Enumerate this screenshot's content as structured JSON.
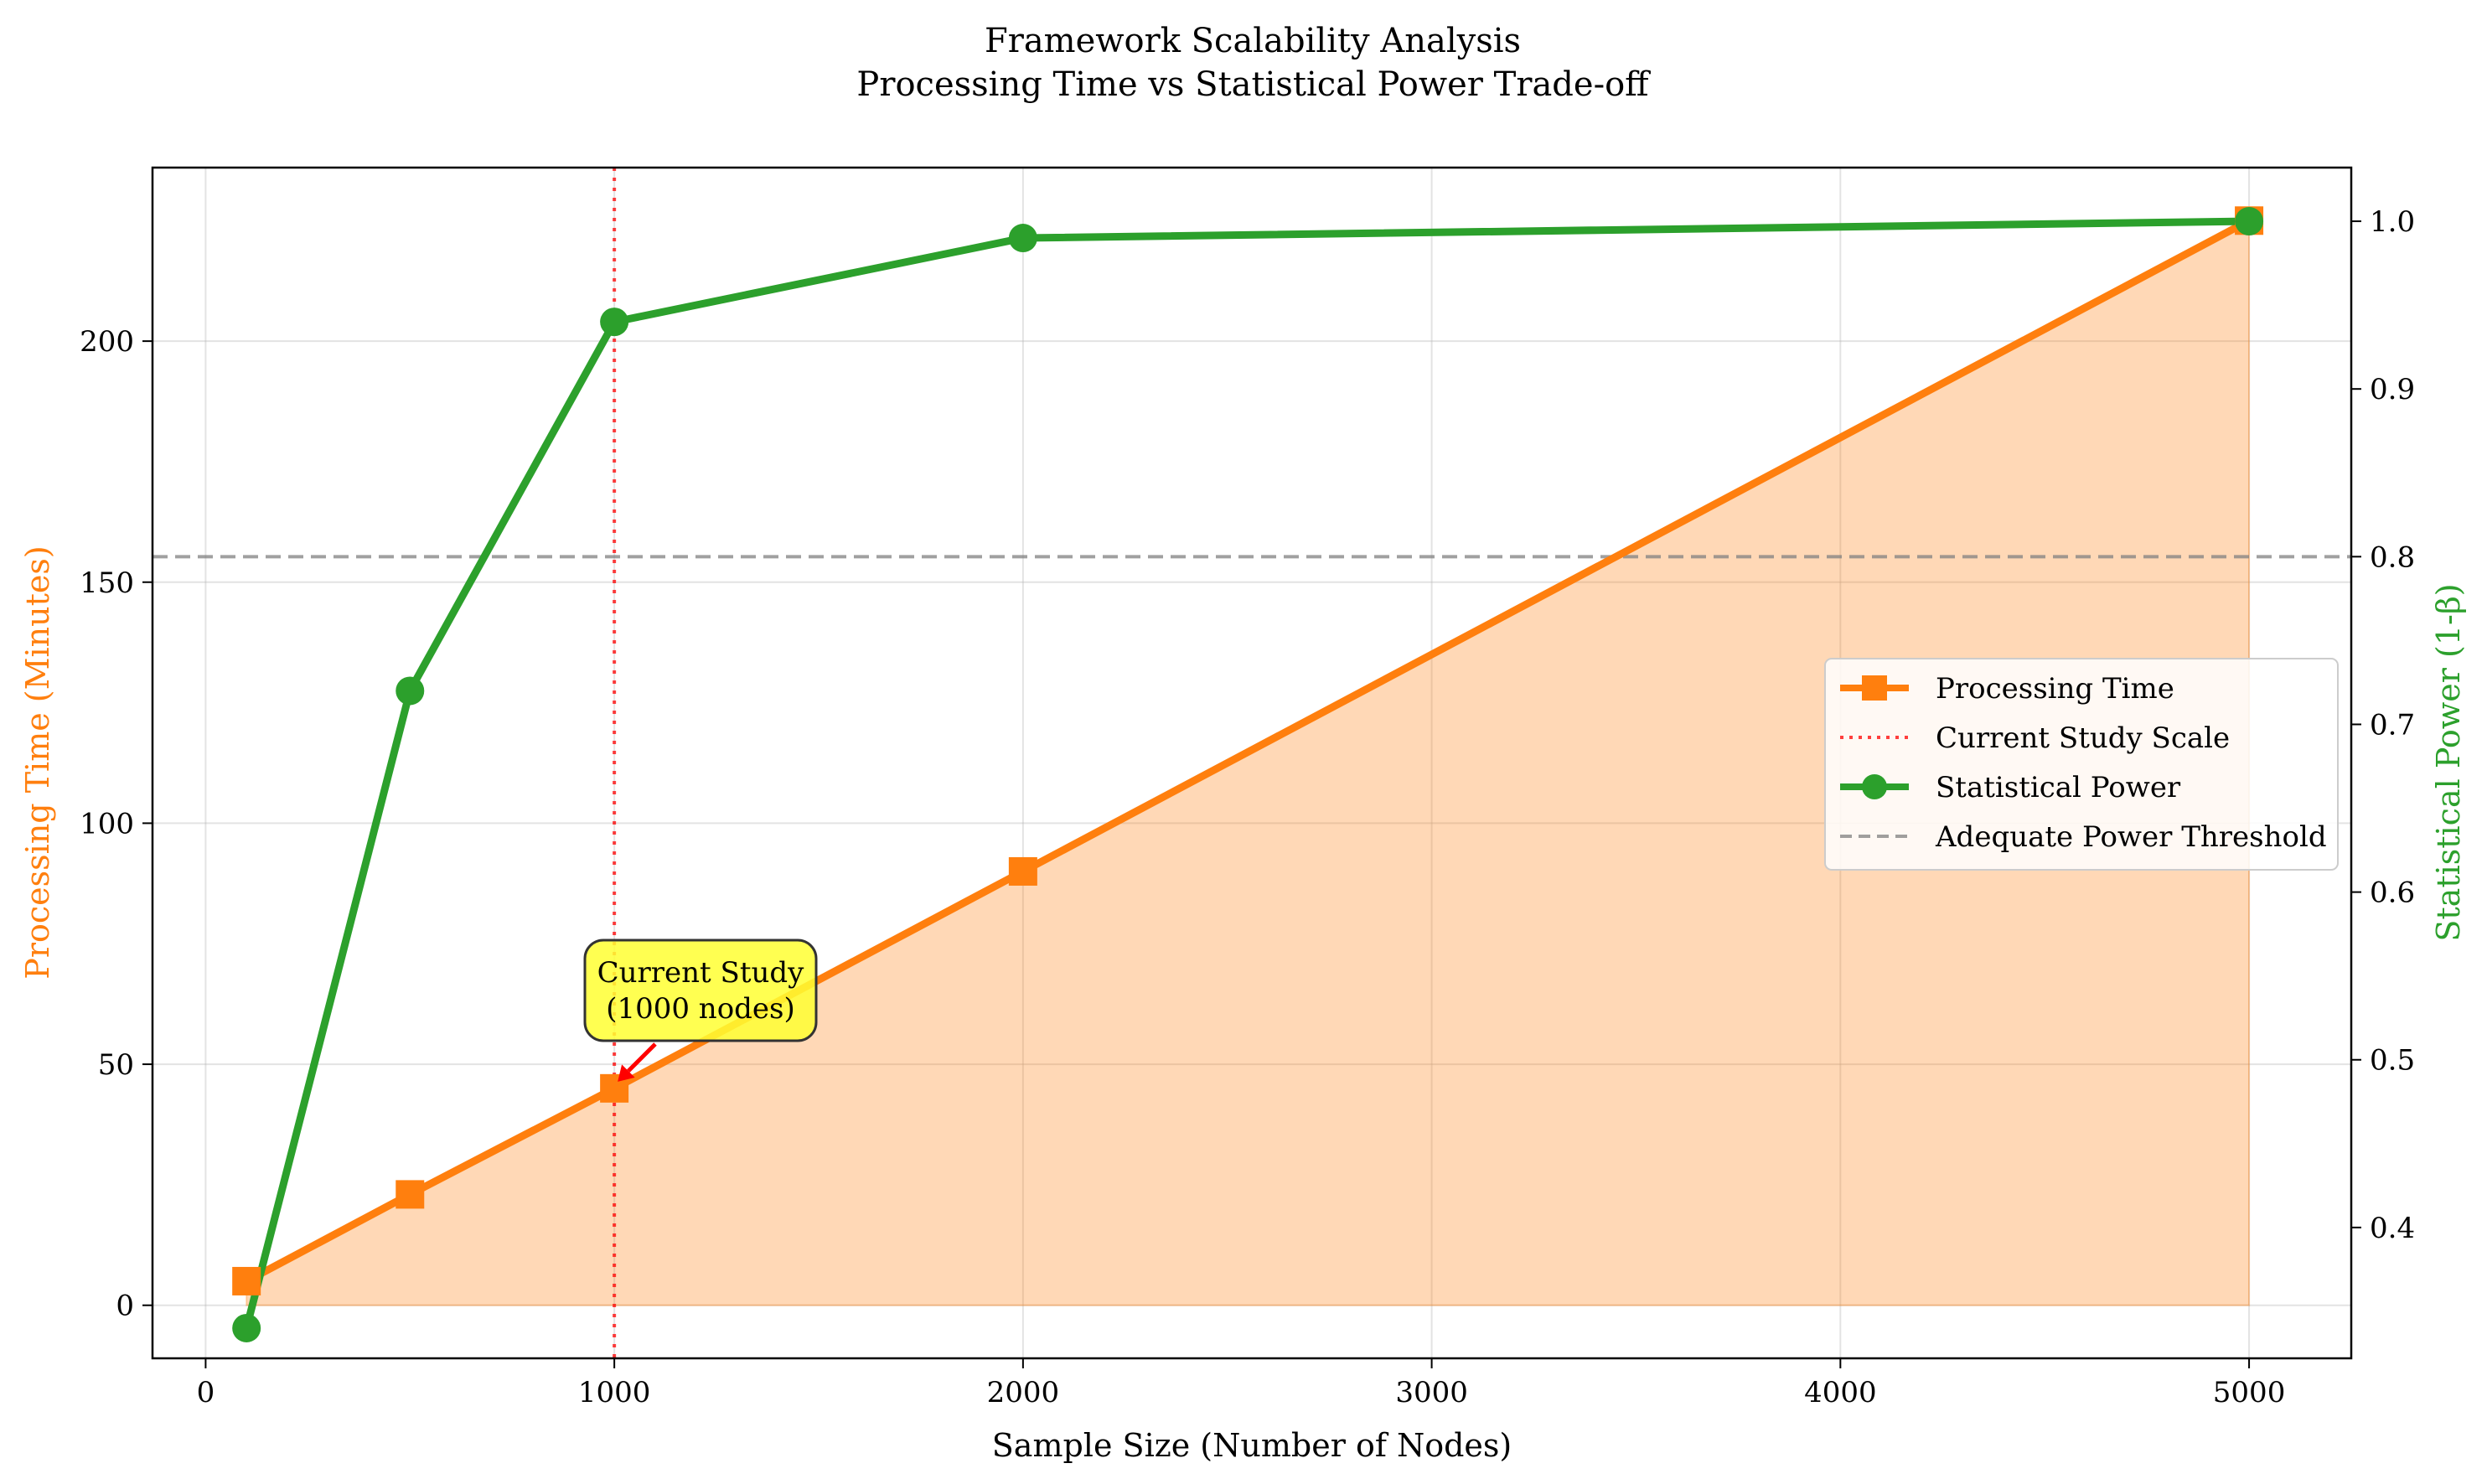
{
  "chart_data": {
    "type": "line",
    "title": "Framework Scalability Analysis",
    "subtitle": "Processing Time vs Statistical Power Trade-off",
    "xlabel": "Sample Size (Number of Nodes)",
    "ylabel_left": "Processing Time (Minutes)",
    "ylabel_right": "Statistical Power (1-β)",
    "xlim": [
      -130,
      5250
    ],
    "ylim_left": [
      -11,
      236
    ],
    "ylim_right": [
      0.322,
      1.032
    ],
    "x_ticks": [
      0,
      1000,
      2000,
      3000,
      4000,
      5000
    ],
    "y_left_ticks": [
      0,
      50,
      100,
      150,
      200
    ],
    "y_right_ticks": [
      0.4,
      0.5,
      0.6,
      0.7,
      0.8,
      0.9,
      1.0
    ],
    "grid": true,
    "legend_position": "center-right",
    "series": [
      {
        "name": "Processing Time",
        "axis": "left",
        "color": "#ff7f0e",
        "marker": "square",
        "fill_area": true,
        "x": [
          100,
          500,
          1000,
          2000,
          5000
        ],
        "values": [
          5,
          23,
          45,
          90,
          225
        ]
      },
      {
        "name": "Statistical Power",
        "axis": "right",
        "color": "#2ca02c",
        "marker": "circle",
        "x": [
          100,
          500,
          1000,
          2000,
          5000
        ],
        "values": [
          0.34,
          0.72,
          0.94,
          0.99,
          1.0
        ]
      }
    ],
    "reference_lines": [
      {
        "name": "Current Study Scale",
        "orientation": "vertical",
        "axis": "x",
        "value": 1000,
        "color": "#ff0000",
        "style": "dotted"
      },
      {
        "name": "Adequate Power Threshold",
        "orientation": "horizontal",
        "axis": "right",
        "value": 0.8,
        "color": "#808080",
        "style": "dashed"
      }
    ],
    "annotation": {
      "line1": "Current Study",
      "line2": "(1000 nodes)",
      "target_x": 1000,
      "target_y": 45,
      "box_color": "#ffff33",
      "arrow_color": "#ff0000"
    },
    "legend": [
      "Processing Time",
      "Current Study Scale",
      "Statistical Power",
      "Adequate Power Threshold"
    ]
  }
}
